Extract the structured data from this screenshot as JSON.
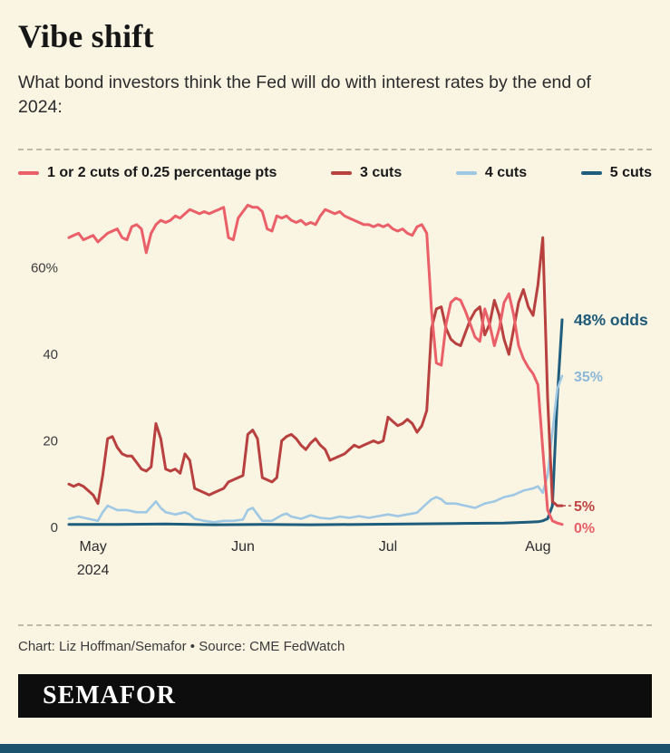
{
  "header": {
    "title": "Vibe shift",
    "subtitle": "What bond investors think the Fed will do with interest rates by the end of 2024:"
  },
  "colors": {
    "page_background": "#faf4e3",
    "separator": "#bfb9a5",
    "logo_background": "#0d0d0d",
    "bottom_bar": "#1b536f",
    "series_1_2_cuts": "#ea5f68",
    "series_3_cuts": "#b8403e",
    "series_4_cuts": "#9ec8e3",
    "series_5_cuts": "#1f5d7d"
  },
  "chart_data": {
    "type": "line",
    "title": "Vibe shift",
    "xlabel": "",
    "ylabel": "",
    "grid": false,
    "legend_position": "top",
    "x_axis": {
      "domain": [
        0,
        102
      ],
      "ticks": [
        {
          "day": 5,
          "label": "May",
          "sublabel": "2024"
        },
        {
          "day": 36,
          "label": "Jun",
          "sublabel": ""
        },
        {
          "day": 66,
          "label": "Jul",
          "sublabel": ""
        },
        {
          "day": 97,
          "label": "Aug",
          "sublabel": ""
        }
      ]
    },
    "y_axis": {
      "range": [
        0,
        75
      ],
      "ticks": [
        {
          "value": 0,
          "label": "0"
        },
        {
          "value": 20,
          "label": "20"
        },
        {
          "value": 40,
          "label": "40"
        },
        {
          "value": 60,
          "label": "60%"
        }
      ]
    },
    "series": [
      {
        "name": "1 or 2 cuts of 0.25 percentage pts",
        "color": "#ea5f68",
        "stroke_width": 3,
        "end_label": {
          "text": "0%",
          "value": 0,
          "label_color": "#ea5f68",
          "bold": false,
          "dashed_leader": false
        },
        "points": [
          [
            0,
            67
          ],
          [
            1,
            67.5
          ],
          [
            2,
            68
          ],
          [
            3,
            66.5
          ],
          [
            4,
            67
          ],
          [
            5,
            67.5
          ],
          [
            6,
            66
          ],
          [
            7,
            67
          ],
          [
            8,
            68
          ],
          [
            9,
            68.5
          ],
          [
            10,
            69
          ],
          [
            11,
            67
          ],
          [
            12,
            66.5
          ],
          [
            13,
            69.5
          ],
          [
            14,
            70
          ],
          [
            15,
            69
          ],
          [
            16,
            63.5
          ],
          [
            17,
            68
          ],
          [
            18,
            70
          ],
          [
            19,
            71
          ],
          [
            20,
            70.5
          ],
          [
            21,
            71
          ],
          [
            22,
            72
          ],
          [
            23,
            71.5
          ],
          [
            24,
            72.5
          ],
          [
            25,
            73.5
          ],
          [
            26,
            73
          ],
          [
            27,
            72.5
          ],
          [
            28,
            73
          ],
          [
            29,
            72.5
          ],
          [
            30,
            73
          ],
          [
            31,
            73.5
          ],
          [
            32,
            74
          ],
          [
            33,
            67
          ],
          [
            34,
            66.5
          ],
          [
            35,
            71.5
          ],
          [
            36,
            73
          ],
          [
            37,
            74.5
          ],
          [
            38,
            74
          ],
          [
            39,
            74
          ],
          [
            40,
            73
          ],
          [
            41,
            69
          ],
          [
            42,
            68.5
          ],
          [
            43,
            72
          ],
          [
            44,
            71.5
          ],
          [
            45,
            72
          ],
          [
            46,
            71
          ],
          [
            47,
            70.5
          ],
          [
            48,
            71
          ],
          [
            49,
            70
          ],
          [
            50,
            70.5
          ],
          [
            51,
            70
          ],
          [
            52,
            72
          ],
          [
            53,
            73.5
          ],
          [
            54,
            73
          ],
          [
            55,
            72.5
          ],
          [
            56,
            73
          ],
          [
            57,
            72
          ],
          [
            58,
            71.5
          ],
          [
            59,
            71
          ],
          [
            60,
            70.5
          ],
          [
            61,
            70
          ],
          [
            62,
            70
          ],
          [
            63,
            69.5
          ],
          [
            64,
            70
          ],
          [
            65,
            69.5
          ],
          [
            66,
            70
          ],
          [
            67,
            69
          ],
          [
            68,
            68.5
          ],
          [
            69,
            69
          ],
          [
            70,
            68
          ],
          [
            71,
            67.5
          ],
          [
            72,
            69.5
          ],
          [
            73,
            70
          ],
          [
            74,
            68
          ],
          [
            75,
            50
          ],
          [
            76,
            38
          ],
          [
            77,
            37.5
          ],
          [
            78,
            47
          ],
          [
            79,
            52
          ],
          [
            80,
            53
          ],
          [
            81,
            52.5
          ],
          [
            82,
            50
          ],
          [
            83,
            47
          ],
          [
            84,
            44
          ],
          [
            85,
            43
          ],
          [
            86,
            50.5
          ],
          [
            87,
            47
          ],
          [
            88,
            42
          ],
          [
            89,
            46
          ],
          [
            90,
            52
          ],
          [
            91,
            54
          ],
          [
            92,
            49
          ],
          [
            93,
            42
          ],
          [
            94,
            39
          ],
          [
            95,
            37
          ],
          [
            96,
            35.5
          ],
          [
            97,
            33
          ],
          [
            98,
            18
          ],
          [
            99,
            4
          ],
          [
            100,
            1.5
          ],
          [
            101,
            1
          ],
          [
            102,
            0.7
          ]
        ]
      },
      {
        "name": "3 cuts",
        "color": "#b8403e",
        "stroke_width": 3,
        "end_label": {
          "text": "5%",
          "value": 5,
          "label_color": "#c04543",
          "bold": false,
          "dashed_leader": true
        },
        "points": [
          [
            0,
            10
          ],
          [
            1,
            9.5
          ],
          [
            2,
            10
          ],
          [
            3,
            9.5
          ],
          [
            4,
            8.5
          ],
          [
            5,
            7.5
          ],
          [
            6,
            5.5
          ],
          [
            7,
            12
          ],
          [
            8,
            20.5
          ],
          [
            9,
            21
          ],
          [
            10,
            18.5
          ],
          [
            11,
            17
          ],
          [
            12,
            16.5
          ],
          [
            13,
            16.5
          ],
          [
            14,
            15
          ],
          [
            15,
            13.5
          ],
          [
            16,
            13
          ],
          [
            17,
            14
          ],
          [
            18,
            24
          ],
          [
            19,
            20.5
          ],
          [
            20,
            13.5
          ],
          [
            21,
            13
          ],
          [
            22,
            13.5
          ],
          [
            23,
            12.5
          ],
          [
            24,
            17
          ],
          [
            25,
            15.5
          ],
          [
            26,
            9
          ],
          [
            27,
            8.5
          ],
          [
            28,
            8
          ],
          [
            29,
            7.5
          ],
          [
            30,
            8
          ],
          [
            31,
            8.5
          ],
          [
            32,
            9
          ],
          [
            33,
            10.5
          ],
          [
            34,
            11
          ],
          [
            35,
            11.5
          ],
          [
            36,
            12
          ],
          [
            37,
            21.5
          ],
          [
            38,
            22.5
          ],
          [
            39,
            20.5
          ],
          [
            40,
            11.5
          ],
          [
            41,
            11
          ],
          [
            42,
            10.5
          ],
          [
            43,
            11.5
          ],
          [
            44,
            20
          ],
          [
            45,
            21
          ],
          [
            46,
            21.5
          ],
          [
            47,
            20.5
          ],
          [
            48,
            19
          ],
          [
            49,
            18
          ],
          [
            50,
            19.5
          ],
          [
            51,
            20.5
          ],
          [
            52,
            19
          ],
          [
            53,
            18
          ],
          [
            54,
            15.5
          ],
          [
            55,
            16
          ],
          [
            56,
            16.5
          ],
          [
            57,
            17
          ],
          [
            58,
            18
          ],
          [
            59,
            19
          ],
          [
            60,
            18.5
          ],
          [
            61,
            19
          ],
          [
            62,
            19.5
          ],
          [
            63,
            20
          ],
          [
            64,
            19.5
          ],
          [
            65,
            20
          ],
          [
            66,
            25.5
          ],
          [
            67,
            24.5
          ],
          [
            68,
            23.5
          ],
          [
            69,
            24
          ],
          [
            70,
            25
          ],
          [
            71,
            24
          ],
          [
            72,
            22
          ],
          [
            73,
            23.5
          ],
          [
            74,
            27
          ],
          [
            75,
            46
          ],
          [
            76,
            50.5
          ],
          [
            77,
            51
          ],
          [
            78,
            46
          ],
          [
            79,
            43.5
          ],
          [
            80,
            42.5
          ],
          [
            81,
            42
          ],
          [
            82,
            45
          ],
          [
            83,
            48
          ],
          [
            84,
            50
          ],
          [
            85,
            51
          ],
          [
            86,
            44.5
          ],
          [
            87,
            47
          ],
          [
            88,
            52.5
          ],
          [
            89,
            49
          ],
          [
            90,
            43.5
          ],
          [
            91,
            40
          ],
          [
            92,
            46
          ],
          [
            93,
            52
          ],
          [
            94,
            55
          ],
          [
            95,
            51
          ],
          [
            96,
            49
          ],
          [
            97,
            56
          ],
          [
            98,
            67
          ],
          [
            99,
            30
          ],
          [
            100,
            6
          ],
          [
            101,
            5
          ],
          [
            102,
            5
          ]
        ]
      },
      {
        "name": "4 cuts",
        "color": "#9ec8e3",
        "stroke_width": 2.6,
        "end_label": {
          "text": "35%",
          "value": 35,
          "label_color": "#8cb8d8",
          "bold": false,
          "dashed_leader": false
        },
        "points": [
          [
            0,
            2
          ],
          [
            2,
            2.5
          ],
          [
            4,
            2
          ],
          [
            6,
            1.5
          ],
          [
            7,
            3.5
          ],
          [
            8,
            5
          ],
          [
            9,
            4.5
          ],
          [
            10,
            4
          ],
          [
            12,
            4
          ],
          [
            14,
            3.5
          ],
          [
            16,
            3.5
          ],
          [
            18,
            6
          ],
          [
            19,
            4.5
          ],
          [
            20,
            3.5
          ],
          [
            22,
            3
          ],
          [
            24,
            3.5
          ],
          [
            25,
            3
          ],
          [
            26,
            2
          ],
          [
            28,
            1.5
          ],
          [
            30,
            1.2
          ],
          [
            32,
            1.5
          ],
          [
            34,
            1.5
          ],
          [
            36,
            1.8
          ],
          [
            37,
            4
          ],
          [
            38,
            4.5
          ],
          [
            39,
            3
          ],
          [
            40,
            1.5
          ],
          [
            42,
            1.5
          ],
          [
            44,
            2.8
          ],
          [
            45,
            3.2
          ],
          [
            46,
            2.5
          ],
          [
            48,
            2
          ],
          [
            50,
            2.8
          ],
          [
            52,
            2.2
          ],
          [
            54,
            2
          ],
          [
            56,
            2.5
          ],
          [
            58,
            2.2
          ],
          [
            60,
            2.6
          ],
          [
            62,
            2.2
          ],
          [
            64,
            2.6
          ],
          [
            66,
            3
          ],
          [
            68,
            2.6
          ],
          [
            70,
            3
          ],
          [
            72,
            3.4
          ],
          [
            74,
            5.5
          ],
          [
            75,
            6.5
          ],
          [
            76,
            7
          ],
          [
            77,
            6.5
          ],
          [
            78,
            5.5
          ],
          [
            80,
            5.5
          ],
          [
            82,
            5
          ],
          [
            84,
            4.5
          ],
          [
            86,
            5.5
          ],
          [
            88,
            6
          ],
          [
            90,
            7
          ],
          [
            92,
            7.5
          ],
          [
            94,
            8.5
          ],
          [
            96,
            9
          ],
          [
            97,
            9.5
          ],
          [
            98,
            8
          ],
          [
            99,
            12
          ],
          [
            100,
            22
          ],
          [
            101,
            32
          ],
          [
            102,
            35
          ]
        ]
      },
      {
        "name": "5 cuts",
        "color": "#1f5d7d",
        "stroke_width": 3,
        "end_label": {
          "text": "48% odds",
          "value": 48,
          "label_color": "#1d5a78",
          "bold": true,
          "dashed_leader": false
        },
        "points": [
          [
            0,
            0.7
          ],
          [
            10,
            0.7
          ],
          [
            20,
            0.8
          ],
          [
            30,
            0.6
          ],
          [
            40,
            0.7
          ],
          [
            50,
            0.6
          ],
          [
            60,
            0.7
          ],
          [
            70,
            0.8
          ],
          [
            80,
            0.9
          ],
          [
            90,
            1
          ],
          [
            95,
            1.2
          ],
          [
            97,
            1.3
          ],
          [
            98,
            1.5
          ],
          [
            99,
            2
          ],
          [
            100,
            5
          ],
          [
            101,
            30
          ],
          [
            102,
            48
          ]
        ]
      }
    ]
  },
  "footer": {
    "credit": "Chart: Liz Hoffman/Semafor • Source: CME FedWatch",
    "logo_text": "SEMAFOR"
  }
}
